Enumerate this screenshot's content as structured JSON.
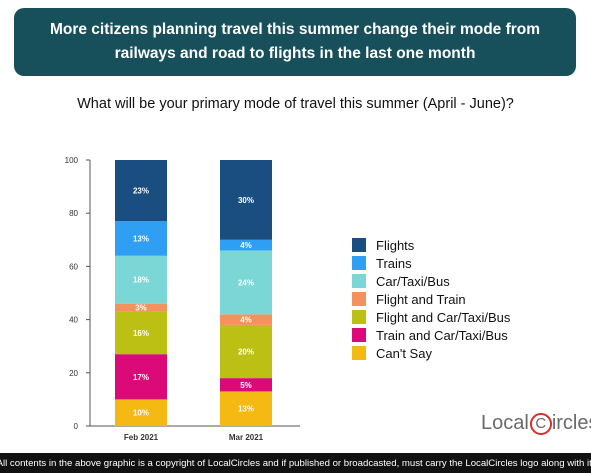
{
  "header": {
    "title": "More citizens planning travel this summer change their mode from railways and road to flights in the last one month"
  },
  "chart_data": {
    "type": "bar",
    "stacked": true,
    "title": "What will be your primary mode of travel this summer (April - June)?",
    "categories": [
      "Feb 2021",
      "Mar 2021"
    ],
    "ylim": [
      0,
      100
    ],
    "yticks": [
      0,
      20,
      40,
      60,
      80,
      100
    ],
    "legend_position": "right",
    "series": [
      {
        "name": "Can't Say",
        "color": "#f5b914",
        "values": [
          10,
          13
        ],
        "labels": [
          "10%",
          "13%"
        ]
      },
      {
        "name": "Train and Car/Taxi/Bus",
        "color": "#dc0a78",
        "values": [
          17,
          5
        ],
        "labels": [
          "17%",
          "5%"
        ]
      },
      {
        "name": "Flight and Car/Taxi/Bus",
        "color": "#bcbf14",
        "values": [
          16,
          20
        ],
        "labels": [
          "16%",
          "20%"
        ]
      },
      {
        "name": "Flight and Train",
        "color": "#f4925f",
        "values": [
          3,
          4
        ],
        "labels": [
          "3%",
          "4%"
        ]
      },
      {
        "name": "Car/Taxi/Bus",
        "color": "#7bd7d6",
        "values": [
          18,
          24
        ],
        "labels": [
          "18%",
          "24%"
        ]
      },
      {
        "name": "Trains",
        "color": "#2e9ff2",
        "values": [
          13,
          4
        ],
        "labels": [
          "13%",
          "4%"
        ]
      },
      {
        "name": "Flights",
        "color": "#1b4e80",
        "values": [
          23,
          30
        ],
        "labels": [
          "23%",
          "30%"
        ]
      }
    ]
  },
  "legend": {
    "items": [
      {
        "label": "Flights",
        "color": "#1b4e80"
      },
      {
        "label": "Trains",
        "color": "#2e9ff2"
      },
      {
        "label": "Car/Taxi/Bus",
        "color": "#7bd7d6"
      },
      {
        "label": "Flight and Train",
        "color": "#f4925f"
      },
      {
        "label": "Flight and Car/Taxi/Bus",
        "color": "#bcbf14"
      },
      {
        "label": "Train and Car/Taxi/Bus",
        "color": "#dc0a78"
      },
      {
        "label": "Can't Say",
        "color": "#f5b914"
      }
    ]
  },
  "logo": {
    "part1": "Local",
    "c": "C",
    "part2": "ircles"
  },
  "footer": {
    "text": "All contents in the above graphic is a copyright of LocalCircles and if published or broadcasted, must carry the LocalCircles logo along with it."
  }
}
